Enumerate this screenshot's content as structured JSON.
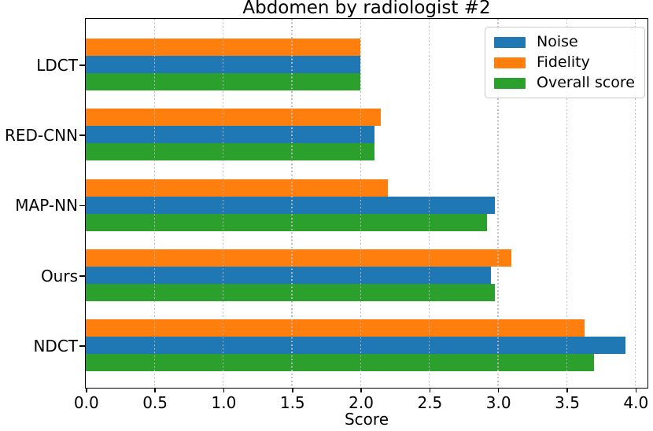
{
  "figure": {
    "title": "Abdomen by radiologist #2",
    "xlabel": "Score"
  },
  "chart_data": {
    "type": "bar",
    "orientation": "horizontal",
    "title": "Abdomen by radiologist #2",
    "xlabel": "Score",
    "ylabel": "",
    "categories": [
      "LDCT",
      "RED-CNN",
      "MAP-NN",
      "Ours",
      "NDCT"
    ],
    "series": [
      {
        "name": "Noise",
        "color": "#1f77b4",
        "values": [
          2.0,
          2.1,
          2.98,
          2.95,
          3.93
        ]
      },
      {
        "name": "Fidelity",
        "color": "#ff7f0e",
        "values": [
          2.0,
          2.15,
          2.2,
          3.1,
          3.63
        ]
      },
      {
        "name": "Overall score",
        "color": "#2ca02c",
        "values": [
          2.0,
          2.1,
          2.92,
          2.98,
          3.7
        ]
      }
    ],
    "bar_order_top_to_bottom": [
      "Fidelity",
      "Noise",
      "Overall score"
    ],
    "xlim": [
      0,
      4.1
    ],
    "xticks": [
      0.0,
      0.5,
      1.0,
      1.5,
      2.0,
      2.5,
      3.0,
      3.5,
      4.0
    ],
    "xtick_labels": [
      "0.0",
      "0.5",
      "1.0",
      "1.5",
      "2.0",
      "2.5",
      "3.0",
      "3.5",
      "4.0"
    ],
    "grid": "vertical dotted at xticks, drawn above bars",
    "legend_position": "upper right",
    "legend_entries": [
      "Noise",
      "Fidelity",
      "Overall score"
    ]
  }
}
